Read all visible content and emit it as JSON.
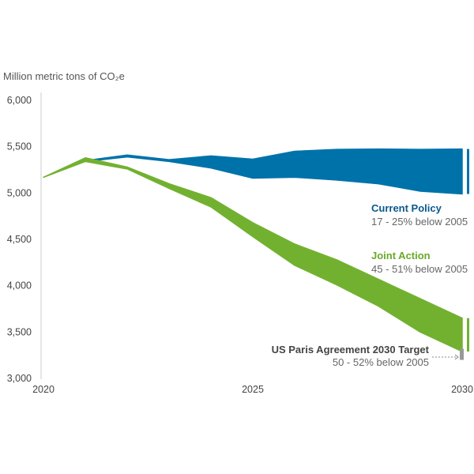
{
  "chart_data": {
    "type": "area",
    "ylabel": "Million metric tons of CO₂e",
    "ylim": [
      3000,
      6000
    ],
    "xlim": [
      2020,
      2030
    ],
    "yticks": [
      "6,000",
      "5,500",
      "5,000",
      "4,500",
      "4,000",
      "3,500",
      "3,000"
    ],
    "ytick_values": [
      6000,
      5500,
      5000,
      4500,
      4000,
      3500,
      3000
    ],
    "xticks": [
      "2020",
      "2025",
      "2030"
    ],
    "xtick_values": [
      2020,
      2025,
      2030
    ],
    "grid": false,
    "series": [
      {
        "name": "Current Policy",
        "subtitle": "17 - 25% below 2005",
        "color": "#0072aa",
        "x": [
          2021,
          2022,
          2023,
          2024,
          2025,
          2026,
          2027,
          2028,
          2029,
          2030
        ],
        "upper": [
          5350,
          5410,
          5360,
          5400,
          5365,
          5450,
          5470,
          5475,
          5470,
          5475
        ],
        "lower": [
          5340,
          5390,
          5340,
          5270,
          5160,
          5170,
          5140,
          5100,
          5020,
          4990
        ]
      },
      {
        "name": "Joint Action",
        "subtitle": "45 - 51% below 2005",
        "color": "#72b130",
        "x": [
          2020,
          2021,
          2022,
          2023,
          2024,
          2025,
          2026,
          2027,
          2028,
          2029,
          2030
        ],
        "upper": [
          5170,
          5380,
          5280,
          5100,
          4950,
          4680,
          4450,
          4280,
          4070,
          3860,
          3650
        ],
        "lower": [
          5170,
          5340,
          5260,
          5050,
          4850,
          4530,
          4220,
          4010,
          3780,
          3500,
          3290
        ]
      }
    ],
    "target": {
      "name": "US Paris Agreement 2030 Target",
      "subtitle": "50 - 52% below 2005",
      "color": "#999999",
      "x": 2030,
      "range": [
        3200,
        3320
      ]
    }
  }
}
